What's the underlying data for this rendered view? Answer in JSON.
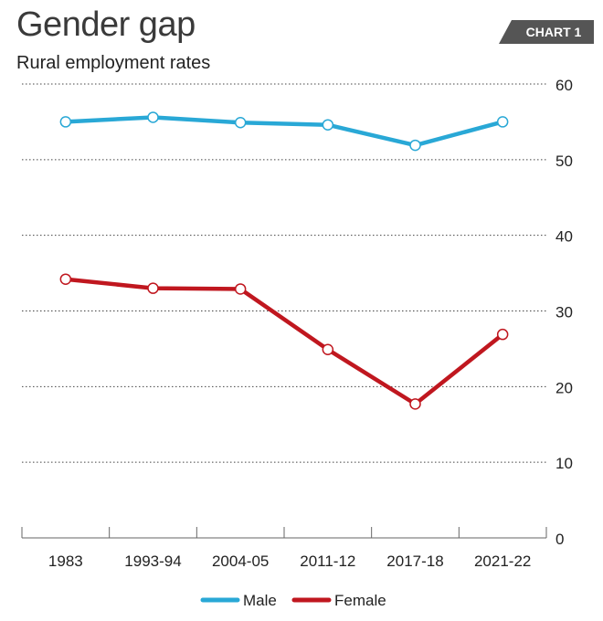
{
  "header": {
    "title": "Gender gap",
    "subtitle": "Rural employment rates",
    "badge": "CHART 1"
  },
  "chart_data": {
    "type": "line",
    "title": "Gender gap",
    "subtitle": "Rural employment rates",
    "categories": [
      "1983",
      "1993-94",
      "2004-05",
      "2011-12",
      "2017-18",
      "2021-22"
    ],
    "series": [
      {
        "name": "Male",
        "color": "#29a8d6",
        "values": [
          55.0,
          55.6,
          54.9,
          54.6,
          51.9,
          55.0
        ]
      },
      {
        "name": "Female",
        "color": "#c0171f",
        "values": [
          34.2,
          33.0,
          32.9,
          24.9,
          17.7,
          26.9
        ]
      }
    ],
    "ylim": [
      0,
      60
    ],
    "yticks": [
      0,
      10,
      20,
      30,
      40,
      50,
      60
    ],
    "ytick_side": "right",
    "grid": "horizontal-dotted",
    "legend": "bottom-center",
    "xlabel": "",
    "ylabel": ""
  }
}
